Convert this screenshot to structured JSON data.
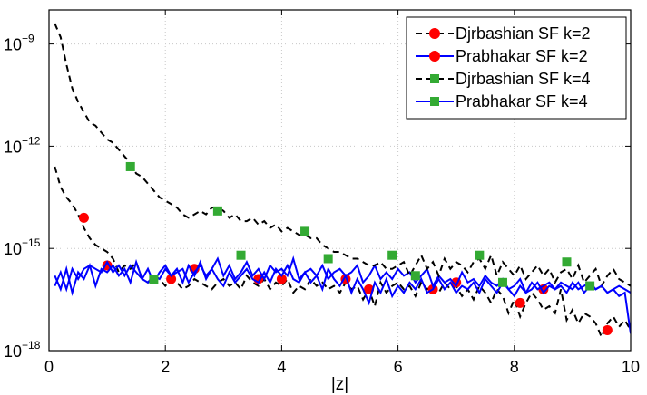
{
  "chart_data": {
    "type": "line",
    "xlabel": "|z|",
    "ylabel": "",
    "xlim": [
      0,
      10
    ],
    "ylim_log10": [
      -18,
      -8
    ],
    "yscale": "log",
    "grid": true,
    "legend_position": "top-right",
    "x_ticks": [
      {
        "value": 0,
        "label": "0"
      },
      {
        "value": 2,
        "label": "2"
      },
      {
        "value": 4,
        "label": "4"
      },
      {
        "value": 6,
        "label": "6"
      },
      {
        "value": 8,
        "label": "8"
      },
      {
        "value": 10,
        "label": "10"
      }
    ],
    "y_ticks": [
      {
        "exp": -18,
        "base": "10",
        "sup": "−18"
      },
      {
        "exp": -15,
        "base": "10",
        "sup": "−15"
      },
      {
        "exp": -12,
        "base": "10",
        "sup": "−12"
      },
      {
        "exp": -9,
        "base": "10",
        "sup": "−9"
      }
    ],
    "series": [
      {
        "name": "Djrbashian SF k=2",
        "line_style": "dashed",
        "line_color": "#000000",
        "marker": "circle",
        "marker_color": "#ff0000",
        "x": [
          0.1,
          0.2,
          0.3,
          0.4,
          0.5,
          0.6,
          0.7,
          0.8,
          0.9,
          1.0,
          1.1,
          1.2,
          1.3,
          1.4,
          1.5,
          1.6,
          1.7,
          1.8,
          1.9,
          2.0,
          2.1,
          2.2,
          2.3,
          2.4,
          2.5,
          2.6,
          2.7,
          2.8,
          2.9,
          3.0,
          3.1,
          3.2,
          3.3,
          3.4,
          3.5,
          3.6,
          3.7,
          3.8,
          3.9,
          4.0,
          4.1,
          4.2,
          4.3,
          4.4,
          4.5,
          4.6,
          4.7,
          4.8,
          4.9,
          5.0,
          5.1,
          5.2,
          5.3,
          5.4,
          5.5,
          5.6,
          5.7,
          5.8,
          5.9,
          6.0,
          6.1,
          6.2,
          6.3,
          6.4,
          6.5,
          6.6,
          6.7,
          6.8,
          6.9,
          7.0,
          7.1,
          7.2,
          7.3,
          7.4,
          7.5,
          7.6,
          7.7,
          7.8,
          7.9,
          8.0,
          8.1,
          8.2,
          8.3,
          8.4,
          8.5,
          8.6,
          8.7,
          8.8,
          8.9,
          9.0,
          9.1,
          9.2,
          9.3,
          9.4,
          9.5,
          9.6,
          9.7,
          9.8,
          9.9,
          10.0
        ],
        "y_log10": [
          -12.6,
          -13.2,
          -13.5,
          -13.7,
          -14.0,
          -14.4,
          -14.7,
          -14.9,
          -15.0,
          -15.1,
          -15.3,
          -15.7,
          -15.5,
          -15.6,
          -15.4,
          -15.9,
          -16.0,
          -15.8,
          -15.9,
          -16.1,
          -15.9,
          -16.0,
          -16.2,
          -16.1,
          -15.9,
          -16.0,
          -16.1,
          -16.2,
          -16.0,
          -15.9,
          -16.1,
          -16.0,
          -16.2,
          -15.8,
          -16.0,
          -16.1,
          -15.9,
          -16.2,
          -16.0,
          -16.1,
          -15.9,
          -16.3,
          -16.1,
          -16.2,
          -15.9,
          -16.1,
          -16.0,
          -16.2,
          -16.1,
          -16.3,
          -16.0,
          -16.2,
          -16.1,
          -16.5,
          -16.2,
          -16.7,
          -16.0,
          -16.3,
          -16.1,
          -16.0,
          -16.2,
          -16.1,
          -16.4,
          -16.0,
          -16.2,
          -16.1,
          -16.3,
          -16.0,
          -16.2,
          -16.1,
          -16.4,
          -16.2,
          -16.5,
          -16.1,
          -16.3,
          -16.6,
          -16.2,
          -16.4,
          -16.9,
          -16.5,
          -17.0,
          -16.6,
          -16.3,
          -16.5,
          -16.8,
          -16.7,
          -16.9,
          -16.2,
          -17.1,
          -16.8,
          -17.2,
          -16.9,
          -17.0,
          -17.2,
          -17.6,
          -17.2,
          -17.0,
          -17.3,
          -17.1,
          -17.4
        ],
        "markers_x": [
          0.6,
          1.0,
          2.1,
          2.5,
          3.6,
          4.0,
          5.1,
          5.5,
          6.6,
          7.0,
          8.1,
          8.5,
          9.6
        ],
        "markers_y_log10": [
          -14.1,
          -15.5,
          -15.9,
          -15.6,
          -15.9,
          -15.9,
          -15.9,
          -16.2,
          -16.2,
          -16.0,
          -16.6,
          -16.2,
          -17.4
        ]
      },
      {
        "name": "Prabhakar SF k=2",
        "line_style": "solid",
        "line_color": "#0000ff",
        "marker": "circle",
        "marker_color": "#ff0000",
        "x": [
          0.1,
          0.2,
          0.3,
          0.4,
          0.5,
          0.6,
          0.7,
          0.8,
          0.9,
          1.0,
          1.1,
          1.2,
          1.3,
          1.4,
          1.5,
          1.6,
          1.7,
          1.8,
          1.9,
          2.0,
          2.1,
          2.2,
          2.3,
          2.4,
          2.5,
          2.6,
          2.7,
          2.8,
          2.9,
          3.0,
          3.1,
          3.2,
          3.3,
          3.4,
          3.5,
          3.6,
          3.7,
          3.8,
          3.9,
          4.0,
          4.1,
          4.2,
          4.3,
          4.4,
          4.5,
          4.6,
          4.7,
          4.8,
          4.9,
          5.0,
          5.1,
          5.2,
          5.3,
          5.4,
          5.5,
          5.6,
          5.7,
          5.8,
          5.9,
          6.0,
          6.1,
          6.2,
          6.3,
          6.4,
          6.5,
          6.6,
          6.7,
          6.8,
          6.9,
          7.0,
          7.1,
          7.2,
          7.3,
          7.4,
          7.5,
          7.6,
          7.7,
          7.8,
          7.9,
          8.0,
          8.1,
          8.2,
          8.3,
          8.4,
          8.5,
          8.6,
          8.7,
          8.8,
          8.9,
          9.0,
          9.1,
          9.2,
          9.3,
          9.4,
          9.5,
          9.6,
          9.7,
          9.8,
          9.9,
          10.0
        ],
        "y_log10": [
          -15.8,
          -16.2,
          -15.6,
          -16.3,
          -15.7,
          -15.9,
          -15.5,
          -16.1,
          -15.6,
          -15.7,
          -15.5,
          -15.8,
          -15.6,
          -16.0,
          -15.4,
          -15.9,
          -15.6,
          -16.0,
          -15.7,
          -15.5,
          -15.8,
          -15.6,
          -16.0,
          -15.5,
          -15.8,
          -15.4,
          -15.9,
          -15.6,
          -15.3,
          -15.8,
          -15.5,
          -15.9,
          -15.7,
          -15.4,
          -15.8,
          -15.6,
          -15.9,
          -15.5,
          -15.7,
          -15.6,
          -15.8,
          -15.3,
          -15.9,
          -15.7,
          -15.6,
          -15.8,
          -15.5,
          -15.9,
          -15.7,
          -15.6,
          -15.8,
          -15.7,
          -15.5,
          -16.0,
          -15.8,
          -15.5,
          -15.9,
          -15.7,
          -15.9,
          -15.6,
          -15.8,
          -15.7,
          -16.0,
          -15.8,
          -15.6,
          -16.1,
          -15.8,
          -16.0,
          -15.9,
          -16.1,
          -15.7,
          -16.0,
          -15.9,
          -16.1,
          -15.8,
          -16.0,
          -16.1,
          -15.9,
          -16.2,
          -16.1,
          -15.9,
          -16.3,
          -16.0,
          -16.2,
          -16.1,
          -16.0,
          -16.2,
          -16.1,
          -16.3,
          -16.0,
          -16.2,
          -16.1,
          -16.0,
          -16.2,
          -16.1,
          -16.3,
          -16.2,
          -16.4,
          -16.3,
          -17.5
        ],
        "markers_x": [],
        "markers_y_log10": []
      },
      {
        "name": "Djrbashian SF k=4",
        "line_style": "dashed",
        "line_color": "#000000",
        "marker": "square",
        "marker_color": "#33aa33",
        "x": [
          0.1,
          0.2,
          0.3,
          0.4,
          0.5,
          0.6,
          0.7,
          0.8,
          0.9,
          1.0,
          1.1,
          1.2,
          1.3,
          1.4,
          1.5,
          1.6,
          1.7,
          1.8,
          1.9,
          2.0,
          2.1,
          2.2,
          2.3,
          2.4,
          2.5,
          2.6,
          2.7,
          2.8,
          2.9,
          3.0,
          3.1,
          3.2,
          3.3,
          3.4,
          3.5,
          3.6,
          3.7,
          3.8,
          3.9,
          4.0,
          4.1,
          4.2,
          4.3,
          4.4,
          4.5,
          4.6,
          4.7,
          4.8,
          4.9,
          5.0,
          5.1,
          5.2,
          5.3,
          5.4,
          5.5,
          5.6,
          5.7,
          5.8,
          5.9,
          6.0,
          6.1,
          6.2,
          6.3,
          6.4,
          6.5,
          6.6,
          6.7,
          6.8,
          6.9,
          7.0,
          7.1,
          7.2,
          7.3,
          7.4,
          7.5,
          7.6,
          7.7,
          7.8,
          7.9,
          8.0,
          8.1,
          8.2,
          8.3,
          8.4,
          8.5,
          8.6,
          8.7,
          8.8,
          8.9,
          9.0,
          9.1,
          9.2,
          9.3,
          9.4,
          9.5,
          9.6,
          9.7,
          9.8,
          9.9,
          10.0
        ],
        "y_log10": [
          -8.4,
          -8.8,
          -9.6,
          -10.3,
          -10.7,
          -11.0,
          -11.3,
          -11.4,
          -11.6,
          -11.8,
          -11.9,
          -12.1,
          -12.3,
          -12.5,
          -12.8,
          -12.9,
          -13.1,
          -13.3,
          -13.5,
          -13.6,
          -13.7,
          -13.8,
          -14.0,
          -14.1,
          -14.0,
          -13.9,
          -14.0,
          -13.8,
          -13.8,
          -13.9,
          -14.1,
          -14.0,
          -14.2,
          -14.2,
          -14.1,
          -14.3,
          -14.2,
          -14.4,
          -14.3,
          -14.5,
          -14.4,
          -14.5,
          -14.6,
          -14.6,
          -14.7,
          -14.7,
          -14.9,
          -15.0,
          -15.1,
          -15.1,
          -15.2,
          -15.3,
          -15.3,
          -15.4,
          -15.5,
          -15.5,
          -15.4,
          -15.6,
          -15.6,
          -15.5,
          -15.4,
          -15.8,
          -15.5,
          -15.2,
          -15.6,
          -15.4,
          -15.8,
          -15.3,
          -15.6,
          -15.4,
          -15.5,
          -15.7,
          -15.4,
          -15.3,
          -15.6,
          -15.2,
          -15.8,
          -15.4,
          -15.6,
          -15.8,
          -15.5,
          -15.9,
          -15.7,
          -15.5,
          -15.8,
          -15.6,
          -16.0,
          -15.7,
          -15.6,
          -15.9,
          -15.5,
          -16.0,
          -15.8,
          -15.6,
          -16.1,
          -15.8,
          -15.6,
          -15.9,
          -16.0,
          -16.1
        ],
        "markers_x": [
          1.4,
          2.9,
          4.4,
          5.9,
          7.4,
          8.9
        ],
        "markers_y_log10": [
          -12.6,
          -13.9,
          -14.5,
          -15.2,
          -15.2,
          -15.4
        ]
      },
      {
        "name": "Prabhakar SF k=4",
        "line_style": "solid",
        "line_color": "#0000ff",
        "marker": "square",
        "marker_color": "#33aa33",
        "x": [
          0.1,
          0.2,
          0.3,
          0.4,
          0.5,
          0.6,
          0.7,
          0.8,
          0.9,
          1.0,
          1.1,
          1.2,
          1.3,
          1.4,
          1.5,
          1.6,
          1.7,
          1.8,
          1.9,
          2.0,
          2.1,
          2.2,
          2.3,
          2.4,
          2.5,
          2.6,
          2.7,
          2.8,
          2.9,
          3.0,
          3.1,
          3.2,
          3.3,
          3.4,
          3.5,
          3.6,
          3.7,
          3.8,
          3.9,
          4.0,
          4.1,
          4.2,
          4.3,
          4.4,
          4.5,
          4.6,
          4.7,
          4.8,
          4.9,
          5.0,
          5.1,
          5.2,
          5.3,
          5.4,
          5.5,
          5.6,
          5.7,
          5.8,
          5.9,
          6.0,
          6.1,
          6.2,
          6.3,
          6.4,
          6.5,
          6.6,
          6.7,
          6.8,
          6.9,
          7.0,
          7.1,
          7.2,
          7.3,
          7.4,
          7.5,
          7.6,
          7.7,
          7.8,
          7.9,
          8.0,
          8.1,
          8.2,
          8.3,
          8.4,
          8.5,
          8.6,
          8.7,
          8.8,
          8.9,
          9.0,
          9.1,
          9.2,
          9.3,
          9.4,
          9.5,
          9.6,
          9.7,
          9.8,
          9.9,
          10.0
        ],
        "y_log10": [
          -16.1,
          -15.7,
          -16.2,
          -15.6,
          -15.9,
          -15.6,
          -15.5,
          -15.6,
          -15.7,
          -15.4,
          -15.7,
          -15.5,
          -15.8,
          -15.5,
          -15.7,
          -15.9,
          -16.0,
          -15.8,
          -15.9,
          -15.6,
          -15.8,
          -15.7,
          -15.6,
          -16.0,
          -15.7,
          -15.5,
          -15.8,
          -15.6,
          -15.9,
          -16.1,
          -15.7,
          -16.0,
          -15.8,
          -15.6,
          -15.9,
          -16.0,
          -15.7,
          -16.0,
          -15.6,
          -15.8,
          -15.5,
          -15.9,
          -16.0,
          -15.7,
          -16.0,
          -15.8,
          -16.2,
          -15.6,
          -15.9,
          -16.1,
          -15.8,
          -16.3,
          -15.9,
          -16.2,
          -16.6,
          -16.0,
          -16.3,
          -15.9,
          -16.4,
          -16.1,
          -16.3,
          -16.0,
          -16.2,
          -15.9,
          -16.3,
          -16.2,
          -15.9,
          -16.2,
          -16.0,
          -16.3,
          -16.1,
          -16.2,
          -16.0,
          -16.3,
          -15.9,
          -16.1,
          -16.3,
          -16.0,
          -16.2,
          -16.4,
          -16.1,
          -16.3,
          -16.2,
          -16.0,
          -16.3,
          -16.1,
          -16.2,
          -16.0,
          -16.1,
          -16.2,
          -16.0,
          -16.3,
          -16.1,
          -16.2,
          -16.1,
          -16.3,
          -16.2,
          -16.1,
          -16.2,
          -16.3
        ],
        "markers_x": [
          1.8,
          3.3,
          4.8,
          6.3,
          7.8,
          9.3
        ],
        "markers_y_log10": [
          -15.9,
          -15.2,
          -15.3,
          -15.8,
          -16.0,
          -16.1
        ]
      }
    ]
  }
}
